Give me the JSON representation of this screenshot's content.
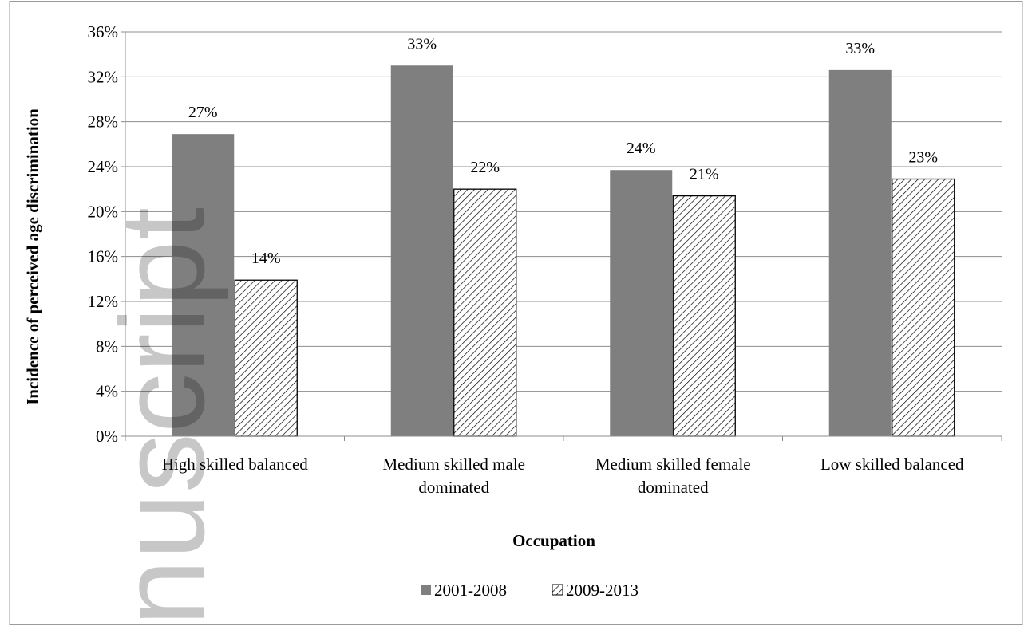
{
  "watermark_text": "nuscript",
  "chart_data": {
    "type": "bar",
    "title": "",
    "xlabel": "Occupation",
    "ylabel": "Incidence of perceived age discrimination",
    "ylim": [
      0,
      36
    ],
    "yticks": [
      "0%",
      "4%",
      "8%",
      "12%",
      "16%",
      "20%",
      "24%",
      "28%",
      "32%",
      "36%"
    ],
    "grid": true,
    "legend_position": "bottom",
    "categories": [
      [
        "High skilled balanced"
      ],
      [
        "Medium skilled male",
        "dominated"
      ],
      [
        "Medium skilled female",
        "dominated"
      ],
      [
        "Low skilled balanced"
      ]
    ],
    "series": [
      {
        "name": "2001-2008",
        "style": "solid",
        "color": "#7f7f7f",
        "values": [
          26.9,
          33.0,
          23.7,
          32.6
        ],
        "labels": [
          "27%",
          "33%",
          "24%",
          "33%"
        ]
      },
      {
        "name": "2009-2013",
        "style": "hatched",
        "color": "#ffffff",
        "values": [
          13.9,
          22.0,
          21.4,
          22.9
        ],
        "labels": [
          "14%",
          "22%",
          "21%",
          "23%"
        ]
      }
    ]
  }
}
